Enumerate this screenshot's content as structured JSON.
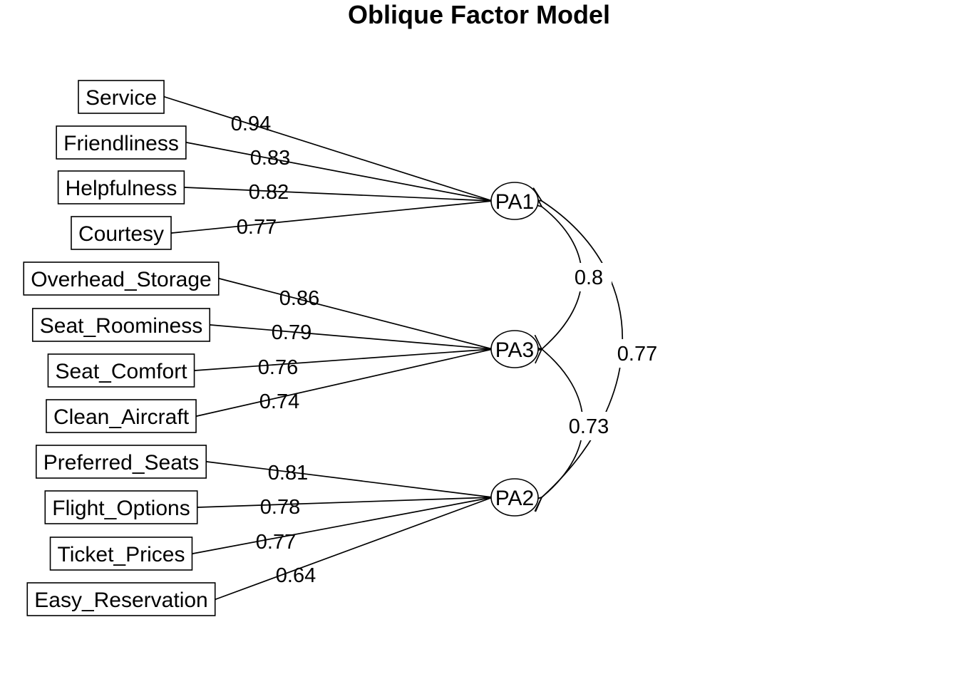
{
  "title": "Oblique Factor Model",
  "factors": [
    {
      "id": "PA1",
      "label": "PA1"
    },
    {
      "id": "PA3",
      "label": "PA3"
    },
    {
      "id": "PA2",
      "label": "PA2"
    }
  ],
  "variables": [
    {
      "label": "Service",
      "factor": "PA1",
      "loading": "0.94"
    },
    {
      "label": "Friendliness",
      "factor": "PA1",
      "loading": "0.83"
    },
    {
      "label": "Helpfulness",
      "factor": "PA1",
      "loading": "0.82"
    },
    {
      "label": "Courtesy",
      "factor": "PA1",
      "loading": "0.77"
    },
    {
      "label": "Overhead_Storage",
      "factor": "PA3",
      "loading": "0.86"
    },
    {
      "label": "Seat_Roominess",
      "factor": "PA3",
      "loading": "0.79"
    },
    {
      "label": "Seat_Comfort",
      "factor": "PA3",
      "loading": "0.76"
    },
    {
      "label": "Clean_Aircraft",
      "factor": "PA3",
      "loading": "0.74"
    },
    {
      "label": "Preferred_Seats",
      "factor": "PA2",
      "loading": "0.81"
    },
    {
      "label": "Flight_Options",
      "factor": "PA2",
      "loading": "0.78"
    },
    {
      "label": "Ticket_Prices",
      "factor": "PA2",
      "loading": "0.77"
    },
    {
      "label": "Easy_Reservation",
      "factor": "PA2",
      "loading": "0.64"
    }
  ],
  "correlations": [
    {
      "from": "PA1",
      "to": "PA3",
      "value": "0.8"
    },
    {
      "from": "PA3",
      "to": "PA2",
      "value": "0.73"
    },
    {
      "from": "PA1",
      "to": "PA2",
      "value": "0.77"
    }
  ]
}
